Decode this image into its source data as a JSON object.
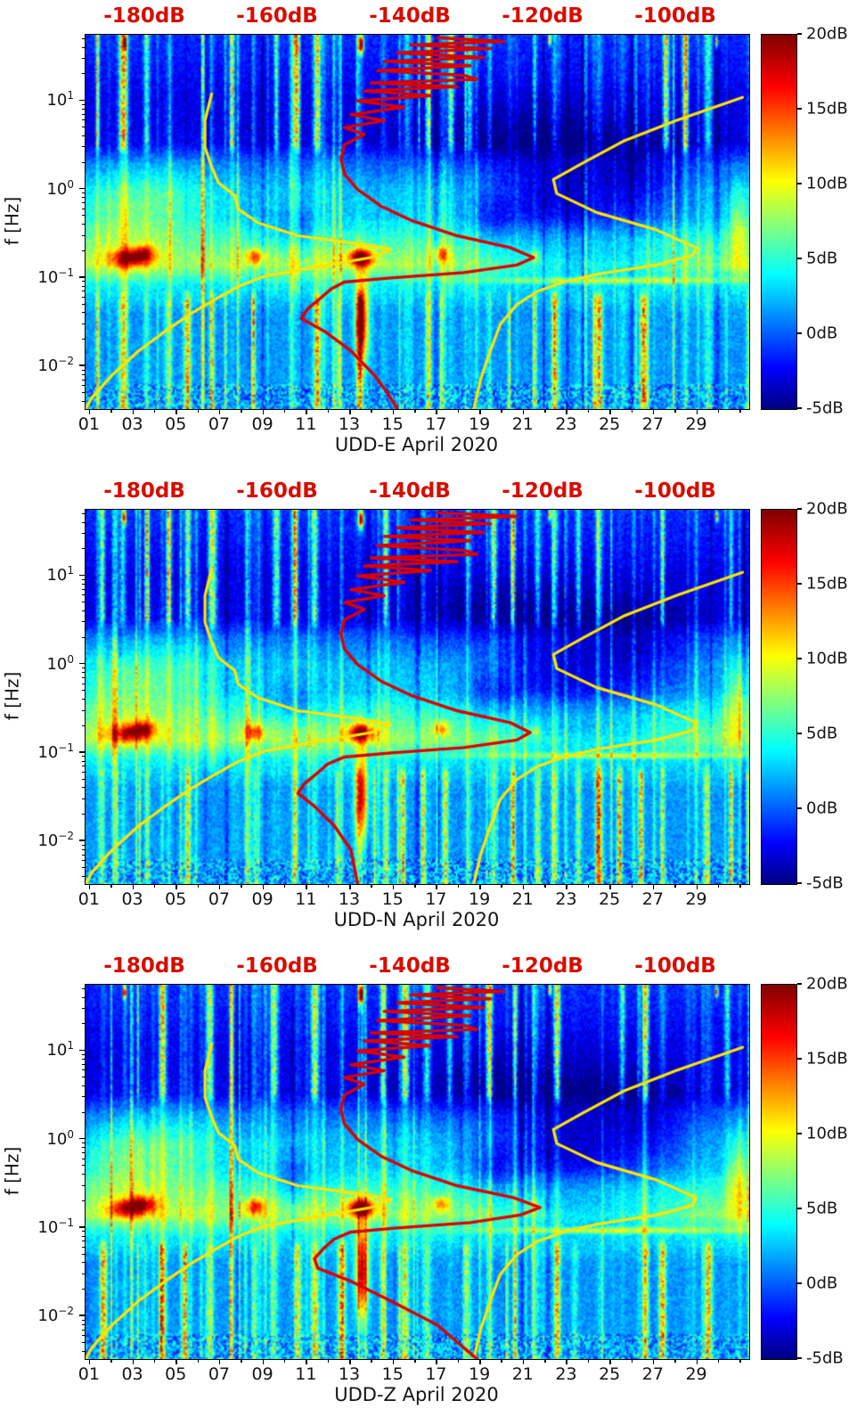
{
  "chart_data": {
    "type": "heatmap",
    "description": "Three stacked seismic power spectral density spectrograms (jet colormap) with overlaid Peterson noise-model curves (yellow) and station median PSD curves (red) plotted against the red top dB axis.",
    "panels": [
      {
        "title": "UDD-E April 2020",
        "seed": 7,
        "blob_scale": 1.0,
        "median_red": [
          [
            52,
            -136
          ],
          [
            47,
            -126
          ],
          [
            43,
            -140
          ],
          [
            39,
            -128
          ],
          [
            35,
            -142
          ],
          [
            31,
            -129
          ],
          [
            28,
            -144
          ],
          [
            25,
            -131
          ],
          [
            22,
            -145
          ],
          [
            19.5,
            -132
          ],
          [
            17.5,
            -130
          ],
          [
            16,
            -146
          ],
          [
            14.5,
            -133
          ],
          [
            13,
            -147
          ],
          [
            11.5,
            -137
          ],
          [
            10,
            -148
          ],
          [
            8.5,
            -141
          ],
          [
            7,
            -149
          ],
          [
            6,
            -144
          ],
          [
            5,
            -150
          ],
          [
            4.2,
            -147
          ],
          [
            3.2,
            -150
          ],
          [
            2.2,
            -150.5
          ],
          [
            1.5,
            -150
          ],
          [
            1,
            -148
          ],
          [
            0.65,
            -144.5
          ],
          [
            0.45,
            -140
          ],
          [
            0.3,
            -133
          ],
          [
            0.22,
            -125
          ],
          [
            0.17,
            -121.5
          ],
          [
            0.14,
            -124
          ],
          [
            0.115,
            -132
          ],
          [
            0.1,
            -143
          ],
          [
            0.09,
            -150
          ],
          [
            0.075,
            -152
          ],
          [
            0.06,
            -153.5
          ],
          [
            0.045,
            -155.5
          ],
          [
            0.035,
            -156.5
          ],
          [
            0.025,
            -153
          ],
          [
            0.015,
            -149
          ],
          [
            0.008,
            -145.5
          ],
          [
            0.005,
            -143.5
          ],
          [
            0.0033,
            -142
          ]
        ]
      },
      {
        "title": "UDD-N April 2020",
        "seed": 101,
        "blob_scale": 0.97,
        "median_red": [
          [
            52,
            -136
          ],
          [
            47,
            -124
          ],
          [
            43,
            -140
          ],
          [
            39,
            -128
          ],
          [
            35,
            -142
          ],
          [
            31,
            -129
          ],
          [
            28,
            -144
          ],
          [
            25,
            -131
          ],
          [
            22,
            -145
          ],
          [
            19.5,
            -132
          ],
          [
            17.5,
            -130
          ],
          [
            16,
            -146
          ],
          [
            14.5,
            -133
          ],
          [
            13,
            -147
          ],
          [
            11.5,
            -137
          ],
          [
            10,
            -148
          ],
          [
            8.5,
            -141
          ],
          [
            7,
            -149
          ],
          [
            6,
            -144
          ],
          [
            5,
            -150
          ],
          [
            4.2,
            -147
          ],
          [
            3.2,
            -150
          ],
          [
            2.2,
            -150.5
          ],
          [
            1.5,
            -150
          ],
          [
            1,
            -148
          ],
          [
            0.65,
            -144.5
          ],
          [
            0.45,
            -140
          ],
          [
            0.3,
            -133
          ],
          [
            0.22,
            -125
          ],
          [
            0.17,
            -122
          ],
          [
            0.14,
            -124
          ],
          [
            0.115,
            -132
          ],
          [
            0.1,
            -143
          ],
          [
            0.09,
            -150
          ],
          [
            0.075,
            -152.5
          ],
          [
            0.06,
            -154
          ],
          [
            0.045,
            -156
          ],
          [
            0.035,
            -157
          ],
          [
            0.025,
            -154.5
          ],
          [
            0.015,
            -151.5
          ],
          [
            0.008,
            -149
          ],
          [
            0.0033,
            -148
          ]
        ]
      },
      {
        "title": "UDD-Z April 2020",
        "seed": 2029,
        "blob_scale": 1.05,
        "median_red": [
          [
            52,
            -136
          ],
          [
            47,
            -126
          ],
          [
            43,
            -140
          ],
          [
            39,
            -128
          ],
          [
            35,
            -142
          ],
          [
            31,
            -129
          ],
          [
            28,
            -144
          ],
          [
            25,
            -131
          ],
          [
            22,
            -145
          ],
          [
            19.5,
            -132
          ],
          [
            17.5,
            -130
          ],
          [
            16,
            -146
          ],
          [
            14.5,
            -133
          ],
          [
            13,
            -147
          ],
          [
            11.5,
            -137
          ],
          [
            10,
            -148
          ],
          [
            8.5,
            -141
          ],
          [
            7,
            -149
          ],
          [
            6,
            -144
          ],
          [
            5,
            -150
          ],
          [
            4.2,
            -147
          ],
          [
            3.2,
            -150
          ],
          [
            2.2,
            -150.5
          ],
          [
            1.5,
            -150
          ],
          [
            1,
            -148
          ],
          [
            0.65,
            -144.5
          ],
          [
            0.45,
            -140
          ],
          [
            0.3,
            -133
          ],
          [
            0.22,
            -124.5
          ],
          [
            0.17,
            -120.5
          ],
          [
            0.14,
            -123.5
          ],
          [
            0.115,
            -131
          ],
          [
            0.1,
            -142
          ],
          [
            0.09,
            -149
          ],
          [
            0.075,
            -151.5
          ],
          [
            0.06,
            -153
          ],
          [
            0.045,
            -154.5
          ],
          [
            0.035,
            -154
          ],
          [
            0.025,
            -149
          ],
          [
            0.015,
            -143
          ],
          [
            0.008,
            -136
          ],
          [
            0.0033,
            -130
          ]
        ]
      }
    ],
    "noise_models": {
      "nlnm_yellow": [
        [
          12,
          -170
        ],
        [
          6,
          -171
        ],
        [
          3,
          -171
        ],
        [
          1.8,
          -170
        ],
        [
          1.2,
          -169
        ],
        [
          0.85,
          -166.5
        ],
        [
          0.6,
          -166
        ],
        [
          0.42,
          -163
        ],
        [
          0.3,
          -157
        ],
        [
          0.25,
          -149
        ],
        [
          0.21,
          -143
        ],
        [
          0.17,
          -146
        ],
        [
          0.13,
          -155
        ],
        [
          0.105,
          -162
        ],
        [
          0.08,
          -166
        ],
        [
          0.06,
          -169
        ],
        [
          0.04,
          -173
        ],
        [
          0.025,
          -177
        ],
        [
          0.015,
          -181
        ],
        [
          0.008,
          -185
        ],
        [
          0.0045,
          -188
        ],
        [
          0.0033,
          -189
        ]
      ],
      "nhnm_yellow": [
        [
          11,
          -90
        ],
        [
          6,
          -100
        ],
        [
          3.5,
          -108
        ],
        [
          2,
          -114
        ],
        [
          1.3,
          -118.5
        ],
        [
          0.9,
          -118
        ],
        [
          0.55,
          -112
        ],
        [
          0.35,
          -103
        ],
        [
          0.22,
          -97
        ],
        [
          0.18,
          -97.5
        ],
        [
          0.14,
          -103
        ],
        [
          0.11,
          -112
        ],
        [
          0.09,
          -117
        ],
        [
          0.07,
          -121
        ],
        [
          0.05,
          -124
        ],
        [
          0.03,
          -126.5
        ],
        [
          0.015,
          -128
        ],
        [
          0.007,
          -129.5
        ],
        [
          0.0033,
          -130.5
        ]
      ]
    },
    "shared_axes": {
      "ylabel": "f [Hz]",
      "f_range": [
        0.0033,
        56
      ],
      "x_range": [
        0.8,
        31.4
      ],
      "db_range": [
        -189,
        -89
      ],
      "x_ticks": [
        {
          "label": "01",
          "day": 1
        },
        {
          "label": "03",
          "day": 3
        },
        {
          "label": "05",
          "day": 5
        },
        {
          "label": "07",
          "day": 7
        },
        {
          "label": "09",
          "day": 9
        },
        {
          "label": "11",
          "day": 11
        },
        {
          "label": "13",
          "day": 13
        },
        {
          "label": "15",
          "day": 15
        },
        {
          "label": "17",
          "day": 17
        },
        {
          "label": "19",
          "day": 19
        },
        {
          "label": "21",
          "day": 21
        },
        {
          "label": "23",
          "day": 23
        },
        {
          "label": "25",
          "day": 25
        },
        {
          "label": "27",
          "day": 27
        },
        {
          "label": "29",
          "day": 29
        }
      ],
      "y_ticks": [
        {
          "mantissa": "10",
          "exp": "1",
          "f": 10
        },
        {
          "mantissa": "10",
          "exp": "0",
          "f": 1
        },
        {
          "mantissa": "10",
          "exp": "−1",
          "f": 0.1
        },
        {
          "mantissa": "10",
          "exp": "−2",
          "f": 0.01
        }
      ],
      "top_ticks": [
        {
          "label": "-180dB",
          "db": -180
        },
        {
          "label": "-160dB",
          "db": -160
        },
        {
          "label": "-140dB",
          "db": -140
        },
        {
          "label": "-120dB",
          "db": -120
        },
        {
          "label": "-100dB",
          "db": -100
        }
      ]
    },
    "colorbar": {
      "range": [
        -5,
        20
      ],
      "ticks": [
        {
          "label": "20dB",
          "value": 20
        },
        {
          "label": "15dB",
          "value": 15
        },
        {
          "label": "10dB",
          "value": 10
        },
        {
          "label": "5dB",
          "value": 5
        },
        {
          "label": "0dB",
          "value": 0
        },
        {
          "label": "-5dB",
          "value": -5
        }
      ],
      "gradient_stops": [
        [
          "0%",
          "#7f0000"
        ],
        [
          "14%",
          "#ff0000"
        ],
        [
          "39%",
          "#ffff00"
        ],
        [
          "64%",
          "#00ffff"
        ],
        [
          "89%",
          "#0000ff"
        ],
        [
          "100%",
          "#000080"
        ]
      ]
    },
    "style": {
      "curve_yellow": "#ffe400",
      "curve_red": "#dc0000",
      "top_label_color": "#d60d00",
      "axis_color": "#000000"
    },
    "texture": {
      "base_profile": [
        [
          -2.48,
          1.8
        ],
        [
          -1.4,
          1.8
        ],
        [
          -1.08,
          4.2
        ],
        [
          -0.85,
          8.2
        ],
        [
          -0.6,
          6.0
        ],
        [
          -0.32,
          3.2
        ],
        [
          0,
          2.6
        ],
        [
          0.3,
          0.6
        ],
        [
          0.52,
          -2.6
        ],
        [
          1.05,
          -2.4
        ],
        [
          1.4,
          -1.6
        ],
        [
          1.75,
          -0.8
        ]
      ],
      "blobs": [
        [
          2.8,
          -0.78,
          10,
          0.9,
          0.1
        ],
        [
          3.5,
          -0.72,
          7,
          0.6,
          0.09
        ],
        [
          8.6,
          -0.76,
          8,
          0.45,
          0.09
        ],
        [
          13.5,
          -0.77,
          14,
          0.6,
          0.1
        ],
        [
          13.55,
          -1.5,
          15,
          0.3,
          0.5
        ],
        [
          17.2,
          -0.73,
          7,
          0.35,
          0.08
        ],
        [
          21.5,
          -0.75,
          4,
          0.3,
          0.07
        ],
        [
          2.5,
          -0.3,
          3.5,
          2,
          0.5
        ],
        [
          5,
          -0.1,
          2.5,
          2,
          0.5
        ],
        [
          30.9,
          -0.45,
          5,
          0.5,
          0.5
        ],
        [
          25,
          -1.03,
          6,
          5.5,
          0.035
        ],
        [
          2.6,
          1.66,
          20,
          0.07,
          0.07
        ],
        [
          13.5,
          1.64,
          22,
          0.12,
          0.1
        ],
        [
          22.2,
          1.69,
          17,
          0.06,
          0.06
        ],
        [
          29.9,
          1.67,
          18,
          0.06,
          0.06
        ]
      ],
      "quiet": [
        [
          22.5,
          -0.15,
          -5.5,
          3,
          0.5
        ],
        [
          26.5,
          0.05,
          -4,
          2.5,
          0.55
        ],
        [
          20.5,
          0.6,
          -2,
          5,
          0.4
        ],
        [
          24,
          -0.82,
          -3.5,
          4.5,
          0.22
        ],
        [
          10.5,
          -0.45,
          -3,
          1.2,
          0.25
        ],
        [
          19.5,
          -0.35,
          -3,
          1,
          0.3
        ]
      ]
    }
  }
}
